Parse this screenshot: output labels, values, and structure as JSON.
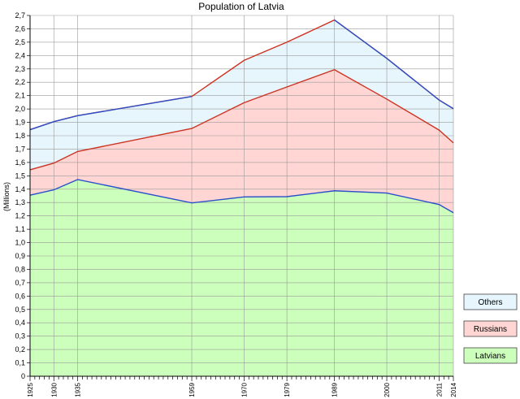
{
  "chart_data": {
    "type": "area",
    "title": "Population of Latvia",
    "ylabel": "(Millions)",
    "xlabel": "",
    "x": [
      1925,
      1930,
      1935,
      1959,
      1970,
      1979,
      1989,
      2000,
      2011,
      2014
    ],
    "x_tick_labels": [
      "1925",
      "1930",
      "1935",
      "1959",
      "1970",
      "1979",
      "1989",
      "2000",
      "2011",
      "2014"
    ],
    "ylim": [
      0,
      2.7
    ],
    "y_step": 0.1,
    "y_tick_labels": [
      "0",
      "0,1",
      "0,2",
      "0,3",
      "0,4",
      "0,5",
      "0,6",
      "0,7",
      "0,8",
      "0,9",
      "1,0",
      "1,1",
      "1,2",
      "1,3",
      "1,4",
      "1,5",
      "1,6",
      "1,7",
      "1,8",
      "1,9",
      "2,0",
      "2,1",
      "2,2",
      "2,3",
      "2,4",
      "2,5",
      "2,6",
      "2,7"
    ],
    "stacked": true,
    "grid": true,
    "legend_position": "right",
    "series": [
      {
        "name": "Latvians",
        "values": [
          1.355,
          1.395,
          1.472,
          1.297,
          1.342,
          1.344,
          1.388,
          1.371,
          1.285,
          1.224
        ],
        "color": "#ccffbb",
        "line": "#2b4fc9"
      },
      {
        "name": "Russians",
        "values": [
          0.19,
          0.2,
          0.21,
          0.557,
          0.705,
          0.821,
          0.906,
          0.703,
          0.557,
          0.523
        ],
        "color": "#ffd6d3",
        "line": "#cc3322"
      },
      {
        "name": "Others",
        "values": [
          0.3,
          0.31,
          0.268,
          0.24,
          0.317,
          0.335,
          0.372,
          0.305,
          0.225,
          0.255
        ],
        "color": "#e6f6fc",
        "line": "#cc3322"
      }
    ],
    "totals": [
      1.845,
      1.905,
      1.95,
      2.094,
      2.364,
      2.5,
      2.666,
      2.379,
      2.067,
      2.002
    ],
    "legend": [
      "Others",
      "Russians",
      "Latvians"
    ]
  }
}
